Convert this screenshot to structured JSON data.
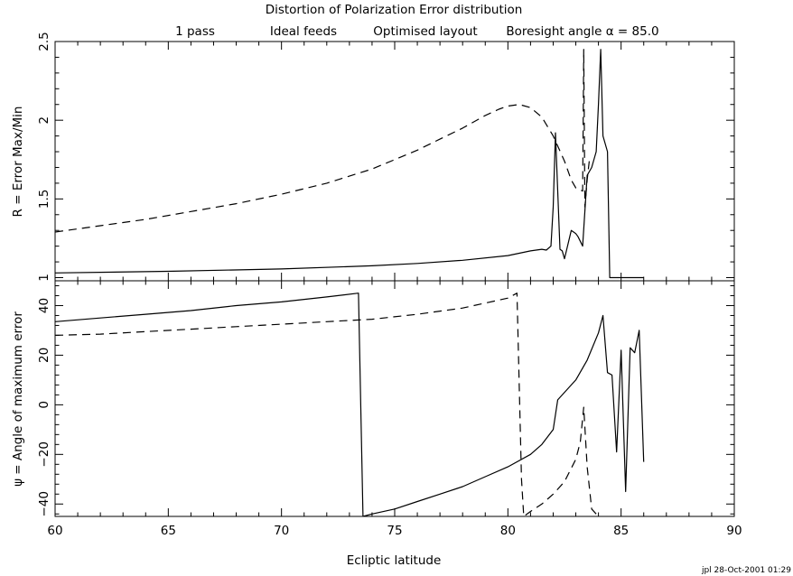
{
  "title": "Distortion of Polarization Error distribution",
  "subtitle": {
    "passes": "1 pass",
    "feeds": "Ideal feeds",
    "layout": "Optimised layout",
    "boresight": "Boresight angle α = 85.0"
  },
  "footer": "jpl 28-Oct-2001 01:29",
  "chart_data": [
    {
      "type": "line",
      "panel": "top",
      "ylabel": "R = Error Max/Min",
      "xlim": [
        60,
        90
      ],
      "ylim": [
        0.98,
        2.5
      ],
      "yticks": [
        1,
        1.5,
        2,
        2.5
      ],
      "ytick_labels": [
        "1",
        "1.5",
        "2",
        "2.5"
      ],
      "series": [
        {
          "style": "dashed",
          "x": [
            60,
            62,
            64,
            66,
            68,
            70,
            72,
            74,
            75,
            76,
            77,
            78,
            79,
            79.6,
            80,
            80.5,
            81,
            81.5,
            82,
            82.5,
            82.8,
            83,
            83.3,
            83.35,
            83.4,
            83.5,
            83.6
          ],
          "y": [
            1.29,
            1.33,
            1.37,
            1.42,
            1.47,
            1.53,
            1.6,
            1.69,
            1.75,
            1.81,
            1.88,
            1.95,
            2.03,
            2.07,
            2.09,
            2.1,
            2.08,
            2.02,
            1.9,
            1.74,
            1.62,
            1.57,
            1.55,
            2.45,
            1.45,
            1.62,
            1.75
          ]
        },
        {
          "style": "solid",
          "x": [
            60,
            65,
            70,
            74,
            76,
            78,
            80,
            81,
            81.5,
            81.7,
            81.9,
            82.0,
            82.1,
            82.3,
            82.4,
            82.5,
            82.8,
            83.0,
            83.1,
            83.3,
            83.5,
            83.7,
            83.9,
            84.0,
            84.1,
            84.2,
            84.4,
            84.5,
            85,
            86
          ],
          "y": [
            1.03,
            1.04,
            1.055,
            1.075,
            1.09,
            1.11,
            1.14,
            1.17,
            1.18,
            1.175,
            1.2,
            1.45,
            1.92,
            1.18,
            1.17,
            1.12,
            1.3,
            1.28,
            1.26,
            1.2,
            1.65,
            1.7,
            1.8,
            2.1,
            2.45,
            1.9,
            1.8,
            1.0,
            1.0,
            1.0
          ]
        }
      ]
    },
    {
      "type": "line",
      "panel": "bottom",
      "xlabel": "Ecliptic latitude",
      "ylabel": "ψ = Angle of maximum error",
      "xlim": [
        60,
        90
      ],
      "ylim": [
        -45,
        50
      ],
      "xticks": [
        60,
        65,
        70,
        75,
        80,
        85,
        90
      ],
      "xtick_labels": [
        "60",
        "65",
        "70",
        "75",
        "80",
        "85",
        "90"
      ],
      "yticks": [
        -40,
        -20,
        0,
        20,
        40
      ],
      "ytick_labels": [
        "−40",
        "−20",
        "0",
        "20",
        "40"
      ],
      "series": [
        {
          "style": "solid",
          "x": [
            60,
            62,
            64,
            66,
            68,
            70,
            72,
            73.4,
            73.4,
            73.6,
            74,
            75,
            76,
            77,
            78,
            79,
            80,
            81,
            81.5,
            82,
            82.2,
            82.5,
            83,
            83.5,
            84,
            84.2,
            84.4,
            84.6,
            84.8,
            85.0,
            85.2,
            85.4,
            85.6,
            85.8,
            86
          ],
          "y": [
            33.5,
            35.0,
            36.5,
            38.0,
            40.0,
            41.5,
            43.5,
            45,
            45,
            -45,
            -44,
            -42,
            -39,
            -36,
            -33,
            -29,
            -25,
            -20,
            -16,
            -10,
            2,
            5,
            10,
            18,
            29,
            36,
            13,
            12,
            -19,
            22,
            -35,
            23,
            21,
            30,
            -23
          ]
        },
        {
          "style": "dashed",
          "x": [
            60,
            62,
            64,
            66,
            68,
            70,
            72,
            74,
            76,
            78,
            79,
            80,
            80.4,
            80.6,
            80.7,
            81,
            81.5,
            82,
            82.5,
            83,
            83.2,
            83.35,
            83.5,
            83.7,
            84
          ],
          "y": [
            28,
            28.5,
            29.5,
            30.5,
            31.5,
            32.5,
            33.5,
            34.5,
            36.5,
            39,
            41,
            43,
            45,
            -30,
            -45,
            -43,
            -40,
            -36,
            -31,
            -22,
            -15,
            -1,
            -25,
            -42,
            -45
          ]
        }
      ]
    }
  ]
}
